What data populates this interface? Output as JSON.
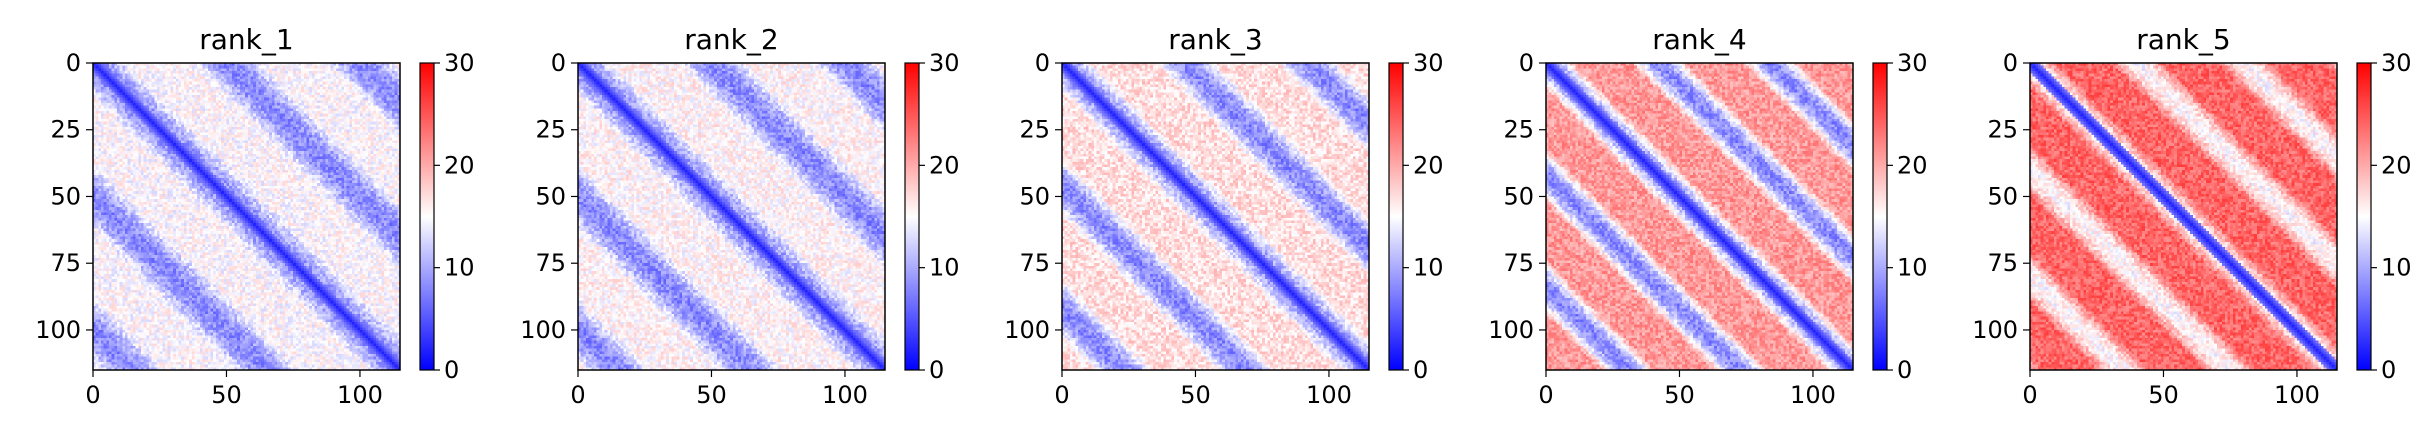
{
  "chart_data": [
    {
      "type": "heatmap",
      "title": "rank_1",
      "matrix_size": 115,
      "xlim": [
        0,
        115
      ],
      "ylim": [
        115,
        0
      ],
      "xticks": [
        0,
        50,
        100
      ],
      "yticks": [
        0,
        25,
        50,
        75,
        100
      ],
      "colorbar": {
        "range": [
          0,
          30
        ],
        "ticks": [
          0,
          10,
          20,
          30
        ],
        "colormap": "bwr"
      },
      "block_period": 25,
      "off_block_level": 15,
      "on_block_level": 8,
      "diagonal_level": 2
    },
    {
      "type": "heatmap",
      "title": "rank_2",
      "matrix_size": 115,
      "xlim": [
        0,
        115
      ],
      "ylim": [
        115,
        0
      ],
      "xticks": [
        0,
        50,
        100
      ],
      "yticks": [
        0,
        25,
        50,
        75,
        100
      ],
      "colorbar": {
        "range": [
          0,
          30
        ],
        "ticks": [
          0,
          10,
          20,
          30
        ],
        "colormap": "bwr"
      },
      "block_period": 25,
      "off_block_level": 15.5,
      "on_block_level": 8,
      "diagonal_level": 2
    },
    {
      "type": "heatmap",
      "title": "rank_3",
      "matrix_size": 115,
      "xlim": [
        0,
        115
      ],
      "ylim": [
        115,
        0
      ],
      "xticks": [
        0,
        50,
        100
      ],
      "yticks": [
        0,
        25,
        50,
        75,
        100
      ],
      "colorbar": {
        "range": [
          0,
          30
        ],
        "ticks": [
          0,
          10,
          20,
          30
        ],
        "colormap": "bwr"
      },
      "block_period": 23,
      "off_block_level": 17,
      "on_block_level": 8,
      "diagonal_level": 2
    },
    {
      "type": "heatmap",
      "title": "rank_4",
      "matrix_size": 115,
      "xlim": [
        0,
        115
      ],
      "ylim": [
        115,
        0
      ],
      "xticks": [
        0,
        50,
        100
      ],
      "yticks": [
        0,
        25,
        50,
        75,
        100
      ],
      "colorbar": {
        "range": [
          0,
          30
        ],
        "ticks": [
          0,
          10,
          20,
          30
        ],
        "colormap": "bwr"
      },
      "block_period": 21,
      "off_block_level": 21,
      "on_block_level": 8,
      "diagonal_level": 2
    },
    {
      "type": "heatmap",
      "title": "rank_5",
      "matrix_size": 115,
      "xlim": [
        0,
        115
      ],
      "ylim": [
        115,
        0
      ],
      "xticks": [
        0,
        50,
        100
      ],
      "yticks": [
        0,
        25,
        50,
        75,
        100
      ],
      "colorbar": {
        "range": [
          0,
          30
        ],
        "ticks": [
          0,
          10,
          20,
          30
        ],
        "colormap": "bwr"
      },
      "block_period": 20,
      "off_block_level": 24,
      "on_block_level": 15,
      "diagonal_level": 2
    }
  ]
}
